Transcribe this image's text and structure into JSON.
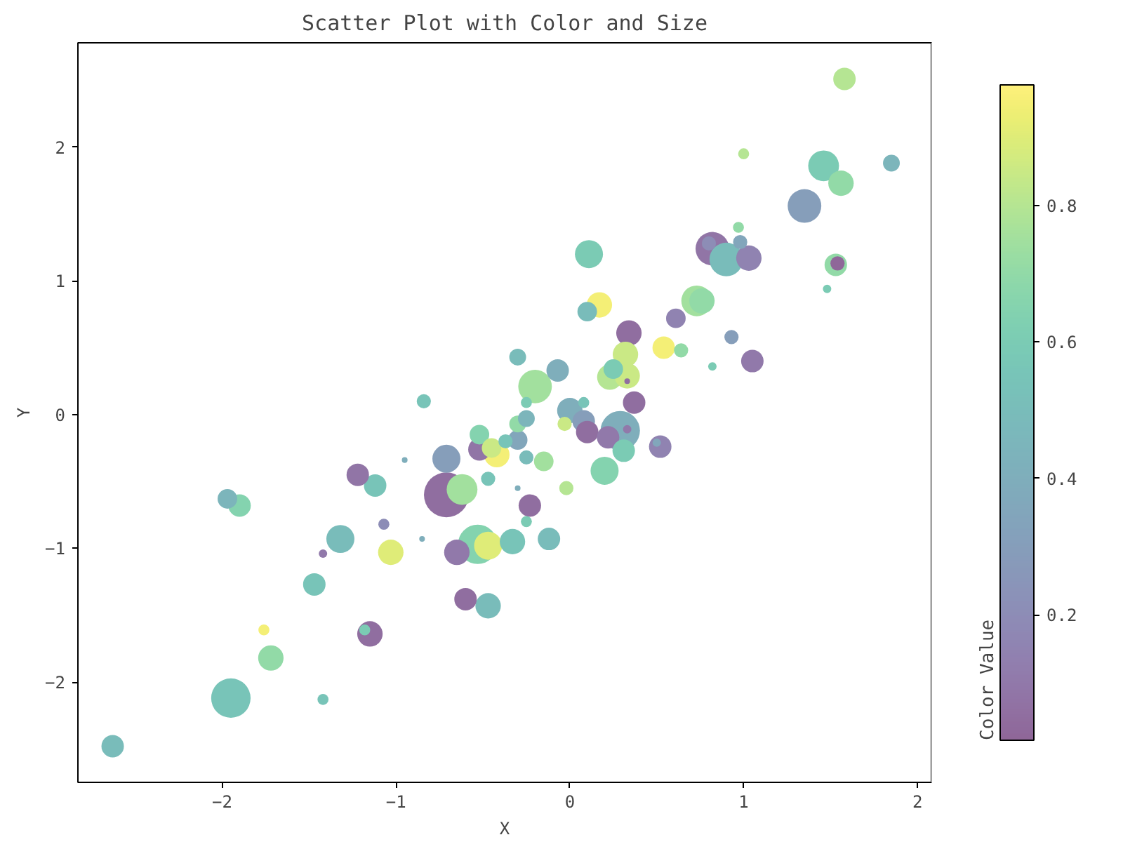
{
  "chart_data": {
    "type": "bubble",
    "title": "Scatter Plot with Color and Size",
    "xlabel": "X",
    "ylabel": "Y",
    "clabel": "Color Value",
    "xlim": [
      -2.83,
      2.08
    ],
    "xticks": [
      -2,
      -1,
      0,
      1,
      2
    ],
    "ylim": [
      -2.75,
      2.78
    ],
    "yticks": [
      -2,
      -1,
      0,
      1,
      2
    ],
    "clim": [
      0.016,
      0.977
    ],
    "cticks": [
      0.2,
      0.4,
      0.6,
      0.8
    ],
    "grid": false,
    "marker": "circle",
    "x": [
      -2.63,
      -1.95,
      -1.72,
      -1.76,
      -1.42,
      -1.15,
      -1.18,
      -1.47,
      -1.42,
      -1.32,
      -1.03,
      -1.07,
      -1.97,
      -1.9,
      -1.12,
      -1.22,
      -0.84,
      -0.71,
      -0.95,
      -0.71,
      -0.62,
      -0.65,
      -0.6,
      -0.85,
      -0.53,
      -0.47,
      -0.47,
      -0.33,
      -0.12,
      -0.23,
      -0.25,
      -0.3,
      -0.47,
      -0.52,
      -0.52,
      -0.42,
      -0.45,
      -0.37,
      -0.3,
      -0.25,
      -0.15,
      -0.3,
      -0.25,
      -0.2,
      -0.25,
      -0.3,
      -0.07,
      -0.03,
      0.0,
      0.08,
      0.08,
      0.1,
      0.22,
      0.29,
      0.31,
      0.2,
      -0.02,
      0.52,
      0.5,
      0.37,
      0.33,
      0.1,
      0.17,
      0.11,
      0.34,
      0.32,
      0.23,
      0.25,
      0.33,
      0.33,
      0.54,
      0.64,
      0.61,
      0.73,
      0.76,
      0.82,
      0.93,
      1.05,
      0.82,
      0.8,
      0.9,
      0.98,
      0.97,
      1.03,
      1.0,
      1.35,
      1.46,
      1.56,
      1.53,
      1.54,
      1.48,
      1.58,
      1.85
    ],
    "values": [
      -2.48,
      -2.12,
      -1.82,
      -1.61,
      -2.13,
      -1.64,
      -1.61,
      -1.27,
      -1.04,
      -0.93,
      -1.03,
      -0.82,
      -0.63,
      -0.68,
      -0.53,
      -0.45,
      0.1,
      -0.33,
      -0.34,
      -0.6,
      -0.56,
      -1.03,
      -1.38,
      -0.93,
      -0.97,
      -0.98,
      -1.43,
      -0.95,
      -0.93,
      -0.68,
      -0.8,
      -0.55,
      -0.48,
      -0.26,
      -0.15,
      -0.3,
      -0.25,
      -0.2,
      -0.19,
      -0.32,
      -0.35,
      -0.07,
      -0.03,
      0.21,
      0.09,
      0.43,
      0.33,
      -0.07,
      0.03,
      0.09,
      -0.05,
      -0.13,
      -0.17,
      -0.12,
      -0.27,
      -0.42,
      -0.55,
      -0.24,
      -0.21,
      0.09,
      -0.11,
      0.77,
      0.82,
      1.2,
      0.61,
      0.45,
      0.28,
      0.34,
      0.29,
      0.25,
      0.5,
      0.48,
      0.72,
      0.85,
      0.85,
      0.36,
      0.58,
      0.4,
      1.24,
      1.28,
      1.16,
      1.29,
      1.4,
      1.17,
      1.95,
      1.56,
      1.86,
      1.73,
      1.12,
      1.13,
      0.94,
      2.51,
      1.88
    ],
    "sizes": [
      0.25,
      0.77,
      0.32,
      0.06,
      0.06,
      0.32,
      0.06,
      0.25,
      0.035,
      0.39,
      0.32,
      0.06,
      0.19,
      0.25,
      0.25,
      0.25,
      0.1,
      0.39,
      0.016,
      1.0,
      0.47,
      0.32,
      0.25,
      0.016,
      0.77,
      0.39,
      0.32,
      0.32,
      0.25,
      0.25,
      0.06,
      0.016,
      0.1,
      0.25,
      0.19,
      0.32,
      0.19,
      0.1,
      0.19,
      0.1,
      0.19,
      0.14,
      0.14,
      0.56,
      0.06,
      0.14,
      0.25,
      0.1,
      0.32,
      0.06,
      0.25,
      0.25,
      0.25,
      0.77,
      0.25,
      0.39,
      0.1,
      0.25,
      0.035,
      0.25,
      0.035,
      0.19,
      0.32,
      0.39,
      0.32,
      0.32,
      0.32,
      0.19,
      0.32,
      0.016,
      0.25,
      0.1,
      0.19,
      0.47,
      0.32,
      0.035,
      0.1,
      0.25,
      0.56,
      0.1,
      0.56,
      0.1,
      0.06,
      0.32,
      0.06,
      0.56,
      0.47,
      0.32,
      0.25,
      0.1,
      0.035,
      0.25,
      0.14
    ],
    "cvalues": [
      0.5,
      0.55,
      0.7,
      0.95,
      0.55,
      0.05,
      0.6,
      0.55,
      0.1,
      0.5,
      0.9,
      0.2,
      0.45,
      0.65,
      0.55,
      0.08,
      0.55,
      0.3,
      0.4,
      0.05,
      0.75,
      0.1,
      0.05,
      0.4,
      0.65,
      0.9,
      0.5,
      0.55,
      0.5,
      0.05,
      0.6,
      0.4,
      0.55,
      0.08,
      0.65,
      0.95,
      0.85,
      0.55,
      0.35,
      0.5,
      0.75,
      0.7,
      0.45,
      0.75,
      0.6,
      0.5,
      0.4,
      0.85,
      0.4,
      0.55,
      0.3,
      0.05,
      0.1,
      0.4,
      0.6,
      0.65,
      0.8,
      0.15,
      0.35,
      0.05,
      0.1,
      0.5,
      0.95,
      0.6,
      0.05,
      0.85,
      0.8,
      0.6,
      0.85,
      0.05,
      0.95,
      0.7,
      0.15,
      0.75,
      0.7,
      0.6,
      0.3,
      0.1,
      0.08,
      0.2,
      0.5,
      0.35,
      0.7,
      0.15,
      0.8,
      0.3,
      0.6,
      0.7,
      0.7,
      0.02,
      0.6,
      0.8,
      0.45
    ]
  }
}
